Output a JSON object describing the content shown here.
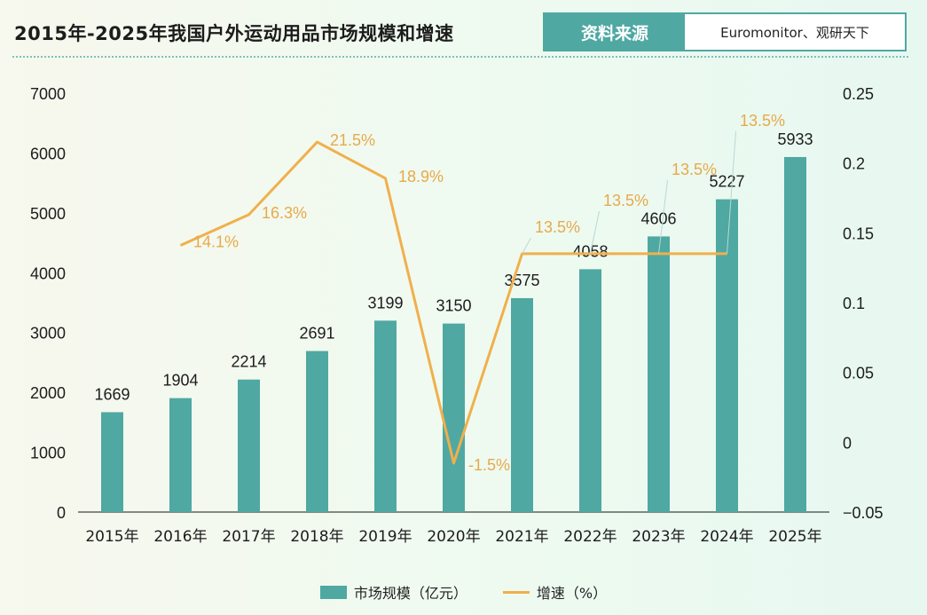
{
  "header": {
    "title": "2015年-2025年我国户外运动用品市场规模和增速",
    "source_label": "资料来源",
    "source_value": "Euromonitor、观研天下"
  },
  "colors": {
    "bar": "#4fa8a2",
    "line": "#f0b04c",
    "bar_label": "#1c1c1c",
    "line_label": "#e8a94a"
  },
  "chart_data": {
    "type": "bar",
    "title": "2015年-2025年我国户外运动用品市场规模和增速",
    "categories": [
      "2015年",
      "2016年",
      "2017年",
      "2018年",
      "2019年",
      "2020年",
      "2021年",
      "2022年",
      "2023年",
      "2024年",
      "2025年"
    ],
    "series": [
      {
        "name": "市场规模（亿元）",
        "type": "bar",
        "axis": "left",
        "values": [
          1669,
          1904,
          2214,
          2691,
          3199,
          3150,
          3575,
          4058,
          4606,
          5227,
          5933
        ]
      },
      {
        "name": "增速（%）",
        "type": "line",
        "axis": "right",
        "values": [
          null,
          0.141,
          0.163,
          0.215,
          0.189,
          -0.015,
          0.135,
          0.135,
          0.135,
          0.135,
          null
        ],
        "labels": [
          "",
          "14.1%",
          "16.3%",
          "21.5%",
          "18.9%",
          "-1.5%",
          "13.5%",
          "13.5%",
          "13.5%",
          "13.5%",
          ""
        ]
      }
    ],
    "y_left": {
      "min": 0,
      "max": 7000,
      "ticks": [
        "0",
        "1000",
        "2000",
        "3000",
        "4000",
        "5000",
        "6000",
        "7000"
      ]
    },
    "y_right": {
      "min": -0.05,
      "max": 0.25,
      "ticks": [
        "-0.05",
        "0",
        "0.05",
        "0.1",
        "0.15",
        "0.2",
        "0.25"
      ]
    },
    "legend": {
      "position": "bottom"
    }
  }
}
